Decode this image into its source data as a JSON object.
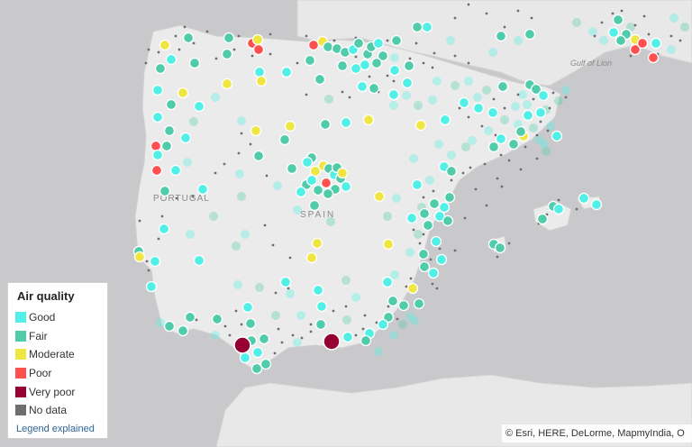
{
  "map": {
    "labels": {
      "portugal": "PORTUGAL",
      "spain": "SPAIN",
      "gulf": "Gulf of Lion"
    }
  },
  "legend": {
    "title": "Air quality",
    "items": [
      {
        "label": "Good",
        "color": "#50f0e6"
      },
      {
        "label": "Fair",
        "color": "#50ccaa"
      },
      {
        "label": "Moderate",
        "color": "#f0e641"
      },
      {
        "label": "Poor",
        "color": "#ff5050"
      },
      {
        "label": "Very poor",
        "color": "#960032"
      },
      {
        "label": "No data",
        "color": "#6e6e6e"
      }
    ],
    "link": "Legend explained"
  },
  "attribution": "© Esri, HERE, DeLorme, MapmyIndia, O"
}
